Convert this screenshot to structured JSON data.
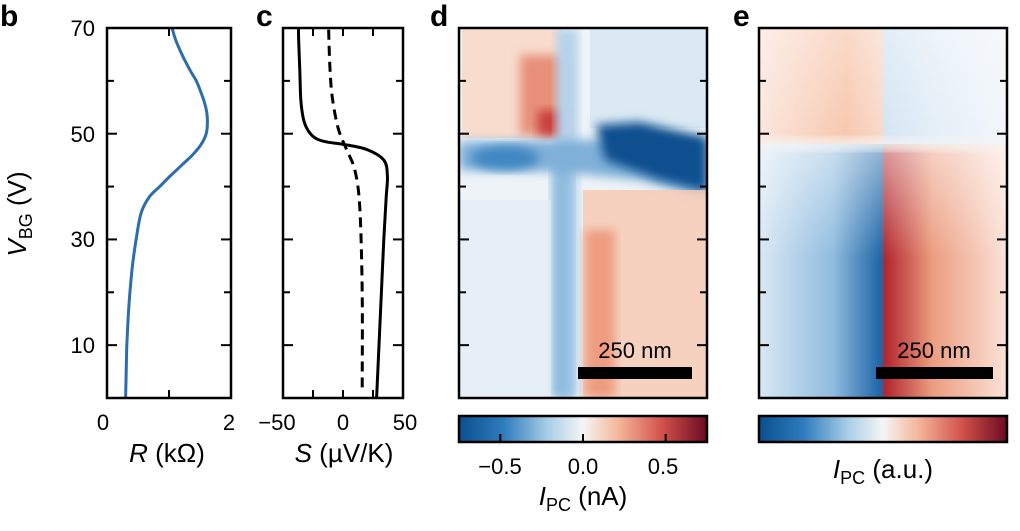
{
  "chart_data": [
    {
      "panel": "b",
      "type": "line",
      "xlabel_var": "R",
      "xlabel_unit": " (kΩ)",
      "ylabel_var": "V",
      "ylabel_sub": "BG",
      "ylabel_unit": " (V)",
      "xlim": [
        0,
        2
      ],
      "ylim": [
        0,
        70
      ],
      "xticks": [
        "0",
        "2"
      ],
      "yticks": [
        "10",
        "30",
        "50",
        "70"
      ],
      "series": [
        {
          "name": "R",
          "color": "#2c6db0",
          "points": [
            [
              0.3,
              0
            ],
            [
              0.31,
              5
            ],
            [
              0.32,
              10
            ],
            [
              0.34,
              15
            ],
            [
              0.37,
              20
            ],
            [
              0.41,
              25
            ],
            [
              0.47,
              30
            ],
            [
              0.55,
              35
            ],
            [
              0.68,
              38
            ],
            [
              0.85,
              40
            ],
            [
              1.02,
              42
            ],
            [
              1.2,
              44
            ],
            [
              1.38,
              46
            ],
            [
              1.52,
              48
            ],
            [
              1.6,
              50
            ],
            [
              1.62,
              52
            ],
            [
              1.61,
              54
            ],
            [
              1.57,
              56
            ],
            [
              1.51,
              58
            ],
            [
              1.44,
              60
            ],
            [
              1.34,
              62
            ],
            [
              1.25,
              64
            ],
            [
              1.17,
              66
            ],
            [
              1.1,
              68
            ],
            [
              1.05,
              70
            ]
          ]
        }
      ]
    },
    {
      "panel": "c",
      "type": "line",
      "xlabel_var": "S",
      "xlabel_unit": " (µV/K)",
      "xlim": [
        -50,
        50
      ],
      "ylim": [
        0,
        70
      ],
      "xticks": [
        "−50",
        "0",
        "50"
      ],
      "series": [
        {
          "name": "S solid",
          "style": "solid",
          "points": [
            [
              28,
              0
            ],
            [
              30,
              10
            ],
            [
              32,
              20
            ],
            [
              34,
              30
            ],
            [
              36,
              38
            ],
            [
              37,
              42
            ],
            [
              34,
              45
            ],
            [
              20,
              47
            ],
            [
              0,
              48
            ],
            [
              -15,
              48.5
            ],
            [
              -25,
              49.5
            ],
            [
              -32,
              52
            ],
            [
              -35,
              56
            ],
            [
              -36,
              62
            ],
            [
              -37,
              68
            ],
            [
              -37,
              70
            ]
          ]
        },
        {
          "name": "S dashed",
          "style": "dashed",
          "points": [
            [
              16,
              2
            ],
            [
              16,
              20
            ],
            [
              14,
              36
            ],
            [
              10,
              43
            ],
            [
              3,
              47
            ],
            [
              -4,
              51
            ],
            [
              -9,
              57
            ],
            [
              -11,
              63
            ],
            [
              -12,
              70
            ]
          ]
        }
      ]
    },
    {
      "panel": "d",
      "type": "heatmap",
      "colorbar_ticks": [
        "−0.5",
        "0.0",
        "0.5"
      ],
      "colorbar_range": [
        -0.75,
        0.75
      ],
      "cbar_label_var": "I",
      "cbar_label_sub": "PC",
      "cbar_label_unit": " (nA)",
      "scalebar": "250 nm"
    },
    {
      "panel": "e",
      "type": "heatmap",
      "cbar_label_var": "I",
      "cbar_label_sub": "PC",
      "cbar_label_unit": " (a.u.)",
      "scalebar": "250 nm"
    }
  ],
  "labels": {
    "b": "b",
    "c": "c",
    "d": "d",
    "e": "e"
  },
  "colors": {
    "line_blue": "#2c6db0",
    "cmap_neg": "#0b4f8f",
    "cmap_mid": "#f5f5f5",
    "cmap_pos": "#7d0a24"
  }
}
